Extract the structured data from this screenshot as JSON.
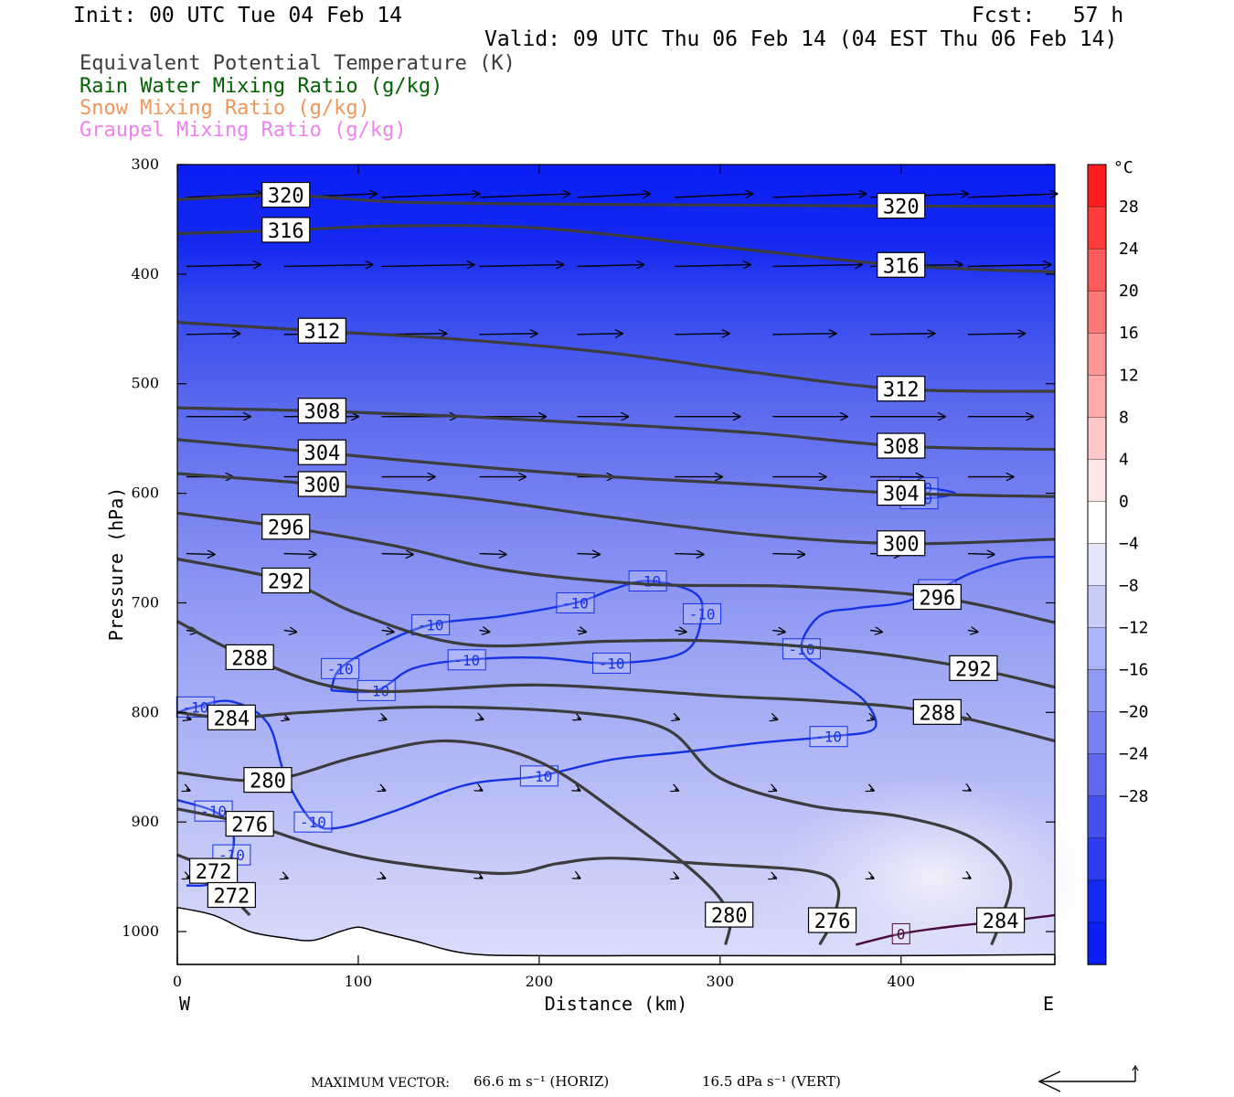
{
  "header": {
    "init": "Init: 00 UTC Tue 04 Feb 14",
    "fcst": "Fcst:   57 h",
    "valid": "Valid: 09 UTC Thu 06 Feb 14 (04 EST Thu 06 Feb 14)"
  },
  "legend": [
    {
      "text": "Equivalent Potential Temperature (K)",
      "color": "#3c3c3c"
    },
    {
      "text": "Rain Water Mixing Ratio (g/kg)",
      "color": "#006400"
    },
    {
      "text": "Snow Mixing Ratio (g/kg)",
      "color": "#f0965a"
    },
    {
      "text": "Graupel Mixing Ratio (g/kg)",
      "color": "#f082f0"
    }
  ],
  "colorbar": {
    "unit": "°C",
    "labels": [
      "28",
      "24",
      "20",
      "16",
      "12",
      "8",
      "4",
      "0",
      "-4",
      "-8",
      "-12",
      "-16",
      "-20",
      "-24",
      "-28"
    ]
  },
  "footer": {
    "max_vector_label": "MAXIMUM VECTOR:",
    "horiz": "66.6 m s⁻¹ (HORIZ)",
    "vert": "16.5 dPa s⁻¹ (VERT)"
  },
  "chart_data": {
    "type": "cross-section",
    "xlabel": "Distance (km)",
    "ylabel": "Pressure (hPa)",
    "xlim": [
      0,
      485
    ],
    "ylim": [
      1030,
      300
    ],
    "x_ticks": [
      "0",
      "100",
      "200",
      "300",
      "400"
    ],
    "y_ticks": [
      "300",
      "400",
      "500",
      "600",
      "700",
      "800",
      "900",
      "1000"
    ],
    "x_left_label": "W",
    "x_right_label": "E",
    "theta_e_contours": [
      {
        "label": "320",
        "points": [
          [
            0,
            332
          ],
          [
            60,
            328
          ],
          [
            120,
            334
          ],
          [
            200,
            336
          ],
          [
            300,
            337
          ],
          [
            400,
            338
          ],
          [
            485,
            338
          ]
        ]
      },
      {
        "label": "316",
        "points": [
          [
            0,
            363
          ],
          [
            60,
            360
          ],
          [
            120,
            356
          ],
          [
            200,
            358
          ],
          [
            300,
            375
          ],
          [
            400,
            392
          ],
          [
            485,
            398
          ]
        ]
      },
      {
        "label": "312",
        "points": [
          [
            0,
            444
          ],
          [
            80,
            452
          ],
          [
            160,
            460
          ],
          [
            240,
            472
          ],
          [
            320,
            490
          ],
          [
            400,
            505
          ],
          [
            485,
            507
          ]
        ]
      },
      {
        "label": "308",
        "points": [
          [
            0,
            522
          ],
          [
            80,
            525
          ],
          [
            160,
            530
          ],
          [
            240,
            537
          ],
          [
            320,
            545
          ],
          [
            400,
            557
          ],
          [
            485,
            560
          ]
        ]
      },
      {
        "label": "304",
        "points": [
          [
            0,
            551
          ],
          [
            80,
            563
          ],
          [
            160,
            575
          ],
          [
            240,
            585
          ],
          [
            320,
            592
          ],
          [
            400,
            600
          ],
          [
            485,
            603
          ]
        ]
      },
      {
        "label": "300",
        "points": [
          [
            0,
            582
          ],
          [
            80,
            592
          ],
          [
            160,
            604
          ],
          [
            240,
            622
          ],
          [
            320,
            638
          ],
          [
            400,
            646
          ],
          [
            485,
            642
          ]
        ]
      },
      {
        "label": "296",
        "points": [
          [
            0,
            618
          ],
          [
            60,
            631
          ],
          [
            120,
            648
          ],
          [
            180,
            670
          ],
          [
            260,
            683
          ],
          [
            340,
            685
          ],
          [
            420,
            695
          ],
          [
            485,
            718
          ]
        ]
      },
      {
        "label": "292",
        "points": [
          [
            0,
            660
          ],
          [
            60,
            680
          ],
          [
            100,
            710
          ],
          [
            160,
            738
          ],
          [
            240,
            735
          ],
          [
            300,
            735
          ],
          [
            380,
            745
          ],
          [
            440,
            760
          ],
          [
            485,
            777
          ]
        ]
      },
      {
        "label": "288",
        "points": [
          [
            0,
            717
          ],
          [
            40,
            750
          ],
          [
            100,
            780
          ],
          [
            200,
            775
          ],
          [
            300,
            785
          ],
          [
            360,
            790
          ],
          [
            420,
            800
          ],
          [
            485,
            826
          ]
        ]
      },
      {
        "label": "284",
        "points": [
          [
            0,
            800
          ],
          [
            30,
            805
          ],
          [
            70,
            800
          ],
          [
            140,
            795
          ],
          [
            220,
            800
          ],
          [
            270,
            815
          ],
          [
            300,
            860
          ],
          [
            350,
            885
          ],
          [
            400,
            895
          ],
          [
            440,
            915
          ],
          [
            460,
            950
          ],
          [
            455,
            990
          ],
          [
            450,
            1012
          ]
        ]
      },
      {
        "label": "280",
        "points": [
          [
            0,
            855
          ],
          [
            50,
            862
          ],
          [
            100,
            840
          ],
          [
            150,
            826
          ],
          [
            200,
            845
          ],
          [
            250,
            900
          ],
          [
            290,
            952
          ],
          [
            305,
            985
          ],
          [
            303,
            1012
          ]
        ]
      },
      {
        "label": "276",
        "points": [
          [
            0,
            888
          ],
          [
            40,
            902
          ],
          [
            80,
            923
          ],
          [
            120,
            937
          ],
          [
            180,
            947
          ],
          [
            210,
            938
          ],
          [
            240,
            933
          ],
          [
            290,
            938
          ],
          [
            350,
            945
          ],
          [
            365,
            960
          ],
          [
            362,
            990
          ],
          [
            355,
            1012
          ]
        ]
      },
      {
        "label": "272",
        "points": [
          [
            0,
            930
          ],
          [
            20,
            945
          ],
          [
            30,
            967
          ],
          [
            40,
            985
          ]
        ]
      }
    ],
    "temperature_contours": [
      {
        "label": "-10",
        "value": -10,
        "points": [
          [
            0,
            800
          ],
          [
            10,
            795
          ],
          [
            30,
            790
          ],
          [
            50,
            810
          ],
          [
            60,
            860
          ],
          [
            75,
            900
          ],
          [
            90,
            905
          ],
          [
            120,
            890
          ],
          [
            160,
            866
          ],
          [
            200,
            858
          ],
          [
            240,
            843
          ],
          [
            280,
            836
          ],
          [
            320,
            828
          ],
          [
            360,
            822
          ],
          [
            385,
            815
          ],
          [
            380,
            790
          ],
          [
            360,
            765
          ],
          [
            345,
            742
          ],
          [
            355,
            712
          ],
          [
            375,
            705
          ],
          [
            400,
            700
          ],
          [
            420,
            688
          ],
          [
            440,
            672
          ],
          [
            465,
            660
          ],
          [
            485,
            658
          ]
        ]
      },
      {
        "label": "-10",
        "value": -10,
        "points": [
          [
            85,
            780
          ],
          [
            90,
            760
          ],
          [
            110,
            740
          ],
          [
            140,
            720
          ],
          [
            180,
            712
          ],
          [
            220,
            700
          ],
          [
            240,
            688
          ],
          [
            260,
            680
          ],
          [
            285,
            690
          ],
          [
            290,
            710
          ],
          [
            280,
            745
          ],
          [
            240,
            755
          ],
          [
            200,
            750
          ],
          [
            160,
            752
          ],
          [
            130,
            760
          ],
          [
            110,
            780
          ],
          [
            85,
            780
          ]
        ]
      },
      {
        "label": "-10",
        "value": -10,
        "points": [
          [
            400,
            600
          ],
          [
            410,
            595
          ],
          [
            430,
            600
          ],
          [
            410,
            605
          ],
          [
            400,
            600
          ]
        ]
      },
      {
        "label": "-10",
        "value": -10,
        "points": [
          [
            0,
            880
          ],
          [
            20,
            890
          ],
          [
            30,
            905
          ],
          [
            30,
            930
          ],
          [
            20,
            955
          ],
          [
            5,
            958
          ]
        ]
      },
      {
        "label": "0",
        "value": 0,
        "points": [
          [
            375,
            1012
          ],
          [
            400,
            1002
          ],
          [
            430,
            995
          ],
          [
            460,
            990
          ],
          [
            485,
            985
          ]
        ]
      }
    ]
  }
}
